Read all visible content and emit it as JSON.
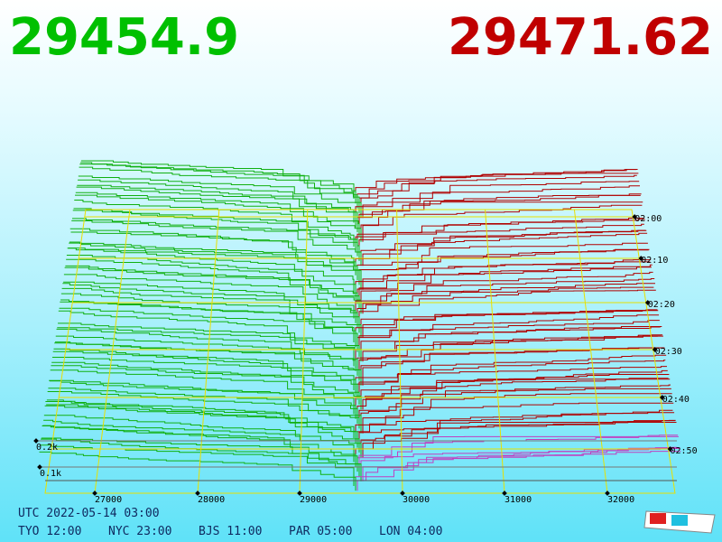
{
  "header": {
    "bid": "29454.9",
    "ask": "29471.62"
  },
  "price_axis": [
    "27000",
    "28000",
    "29000",
    "30000",
    "31000",
    "32000"
  ],
  "depth_axis": [
    "0.2k",
    "0.1k"
  ],
  "time_axis": [
    "02:00",
    "02:10",
    "02:20",
    "02:30",
    "02:40",
    "02:50"
  ],
  "footer": {
    "utc": "UTC 2022-05-14 03:00",
    "cities": [
      "TYO 12:00",
      "NYC 23:00",
      "BJS 11:00",
      "PAR 05:00",
      "LON 04:00"
    ]
  }
}
